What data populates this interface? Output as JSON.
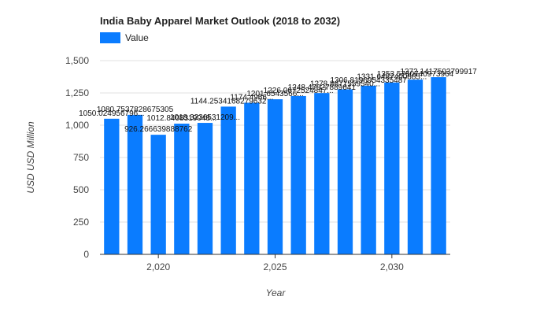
{
  "chart_data": {
    "type": "bar",
    "title": "India Baby Apparel Market Outlook (2018 to 2032)",
    "xlabel": "Year",
    "ylabel": "USD USD Million",
    "legend": {
      "position": "top-left",
      "entries": [
        "Value"
      ]
    },
    "series": [
      {
        "name": "Value",
        "color": "#0a7cff",
        "x": [
          2018,
          2019,
          2020,
          2021,
          2022,
          2023,
          2024,
          2025,
          2026,
          2027,
          2028,
          2029,
          2030,
          2031,
          2032
        ],
        "values": [
          1050,
          1080,
          926,
          1012,
          1018,
          1144,
          1174,
          1201,
          1226,
          1249,
          1278,
          1306,
          1331,
          1353,
          1372
        ],
        "labels": [
          "1050.024956796...",
          "1080.7537828675305",
          "926.266639888762",
          "1012.8408319048...",
          "1018.3236531209...",
          "1144.2534168279632",
          "1174.4966...",
          "1201.6543566...",
          "1226.0672524847...",
          "1248.47927889641",
          "1278.8671559540...",
          "1306.8196954335487",
          "1331.6487400885...",
          "1353.5760740973964",
          "1372.1417503799917"
        ]
      }
    ],
    "xticks": [
      "2,020",
      "2,025",
      "2,030"
    ],
    "xtick_values": [
      2020,
      2025,
      2030
    ],
    "yticks": [
      "0",
      "250",
      "500",
      "750",
      "1,000",
      "1,250",
      "1,500"
    ],
    "ytick_values": [
      0,
      250,
      500,
      750,
      1000,
      1250,
      1500
    ],
    "ylim": [
      0,
      1500
    ],
    "grid": true
  }
}
